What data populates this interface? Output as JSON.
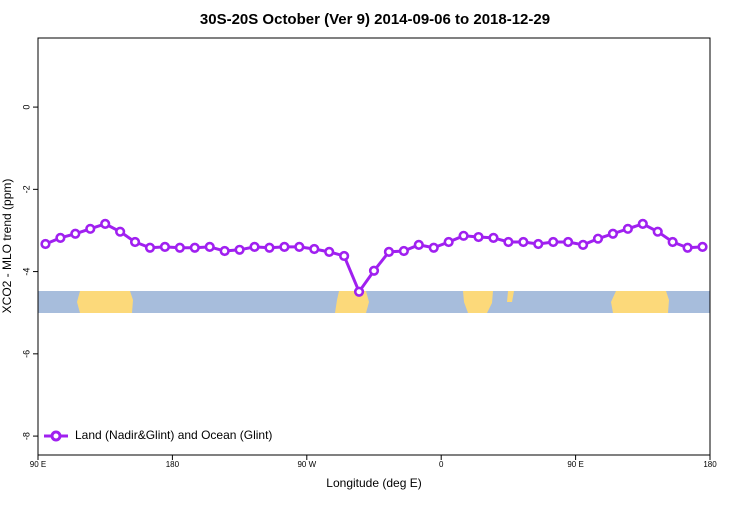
{
  "chart_data": {
    "type": "line",
    "title": "30S-20S October (Ver 9)   2014-09-06 to 2018-12-29",
    "x_label": "Longitude (deg E)",
    "y_label": "XCO2 - MLO trend (ppm)",
    "x": [
      95,
      105,
      115,
      125,
      135,
      145,
      155,
      165,
      175,
      185,
      195,
      205,
      215,
      225,
      235,
      245,
      255,
      265,
      275,
      285,
      295,
      305,
      315,
      325,
      335,
      345,
      355,
      365,
      375,
      385,
      395,
      405,
      415,
      425,
      435,
      445,
      455,
      465,
      475,
      485,
      495,
      505,
      515,
      525,
      535
    ],
    "series": [
      {
        "name": "Land (Nadir&Glint) and Ocean (Glint)",
        "color": "#a020f0",
        "values": [
          -3.33,
          -3.18,
          -3.08,
          -2.96,
          -2.84,
          -3.03,
          -3.28,
          -3.42,
          -3.4,
          -3.42,
          -3.42,
          -3.4,
          -3.5,
          -3.47,
          -3.4,
          -3.42,
          -3.4,
          -3.4,
          -3.45,
          -3.52,
          -3.62,
          -4.49,
          -3.98,
          -3.52,
          -3.5,
          -3.35,
          -3.42,
          -3.28,
          -3.13,
          -3.16,
          -3.18,
          -3.28,
          -3.28,
          -3.33,
          -3.28,
          -3.28,
          -3.35,
          -3.2,
          -3.08,
          -2.96,
          -2.84,
          -3.03,
          -3.28,
          -3.42,
          -3.4
        ]
      }
    ],
    "xlim": [
      90,
      540
    ],
    "ylim": [
      -8.46,
      1.68
    ],
    "xticks": [
      {
        "value": 90,
        "label": "90 E"
      },
      180,
      {
        "value": 270,
        "label": "90 W"
      },
      {
        "value": 360,
        "label": "0"
      },
      {
        "value": 450,
        "label": "90 E"
      },
      {
        "value": 540,
        "label": "180"
      }
    ],
    "yticks": [
      0,
      -2,
      -4,
      -6,
      -8
    ],
    "legend": "bottom-left"
  }
}
